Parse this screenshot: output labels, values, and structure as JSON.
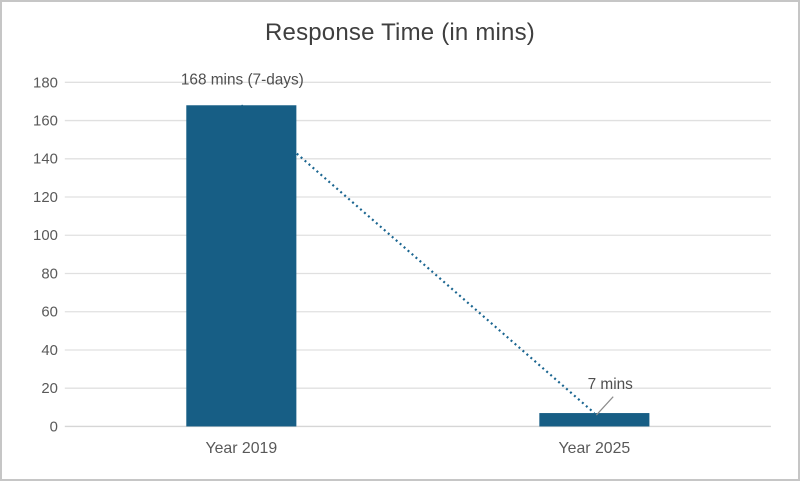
{
  "chart_data": {
    "type": "bar",
    "title": "Response Time (in mins)",
    "categories": [
      "Year 2019",
      "Year 2025"
    ],
    "values": [
      168,
      7
    ],
    "data_labels": [
      "168 mins (7-days)",
      "7 mins"
    ],
    "yticks": [
      0,
      20,
      40,
      60,
      80,
      100,
      120,
      140,
      160,
      180
    ],
    "ylim": [
      0,
      180
    ],
    "xlabel": "",
    "ylabel": "",
    "grid": true,
    "legend": "none",
    "trendline": {
      "style": "dotted",
      "from_category": "Year 2019",
      "to_category": "Year 2025"
    },
    "colors": {
      "bar": "#175e85",
      "trendline": "#1a6590",
      "gridline": "#e0e0e0",
      "axis_line": "#d6d6d6",
      "title_text": "#3f3f3f",
      "tick_text": "#595959",
      "data_label_text": "#4f4f4f",
      "leader_line": "#8c8c8c",
      "frame_border": "#c6c6c6",
      "background": "#ffffff"
    }
  }
}
